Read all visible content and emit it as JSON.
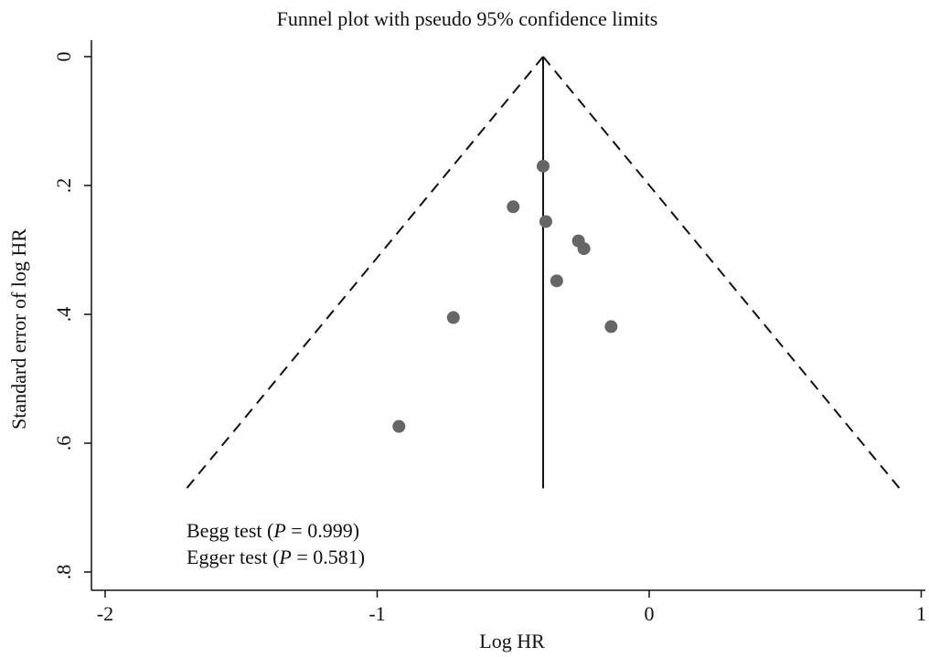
{
  "chart_data": {
    "type": "scatter",
    "title": "Funnel plot with pseudo 95% confidence limits",
    "xlabel": "Log HR",
    "ylabel": "Standard error of log HR",
    "x_ticks": [
      {
        "value": -2,
        "label": "-2"
      },
      {
        "value": -1,
        "label": "-1"
      },
      {
        "value": 0,
        "label": "0"
      },
      {
        "value": 1,
        "label": "1"
      }
    ],
    "y_ticks": [
      {
        "value": 0,
        "label": "0"
      },
      {
        "value": 0.2,
        "label": ".2"
      },
      {
        "value": 0.4,
        "label": ".4"
      },
      {
        "value": 0.6,
        "label": ".6"
      },
      {
        "value": 0.8,
        "label": ".8"
      }
    ],
    "xlim": [
      -2,
      1
    ],
    "ylim": [
      0,
      0.8
    ],
    "y_reversed": true,
    "grid": false,
    "pooled_estimate": -0.39,
    "pseudo_ci": {
      "apex": [
        -0.39,
        0
      ],
      "left_end": [
        -1.7,
        0.67
      ],
      "right_end": [
        0.92,
        0.67
      ]
    },
    "points": [
      {
        "x": -0.39,
        "y": 0.17
      },
      {
        "x": -0.5,
        "y": 0.233
      },
      {
        "x": -0.38,
        "y": 0.256
      },
      {
        "x": -0.26,
        "y": 0.286
      },
      {
        "x": -0.24,
        "y": 0.298
      },
      {
        "x": -0.34,
        "y": 0.348
      },
      {
        "x": -0.72,
        "y": 0.405
      },
      {
        "x": -0.14,
        "y": 0.419
      },
      {
        "x": -0.92,
        "y": 0.574
      }
    ],
    "annotations": {
      "begg": {
        "prefix": "Begg test (",
        "p_symbol": "P",
        "suffix": " =  0.999)"
      },
      "egger": {
        "prefix": "Egger test (",
        "p_symbol": "P",
        "suffix": " = 0.581)"
      }
    }
  }
}
